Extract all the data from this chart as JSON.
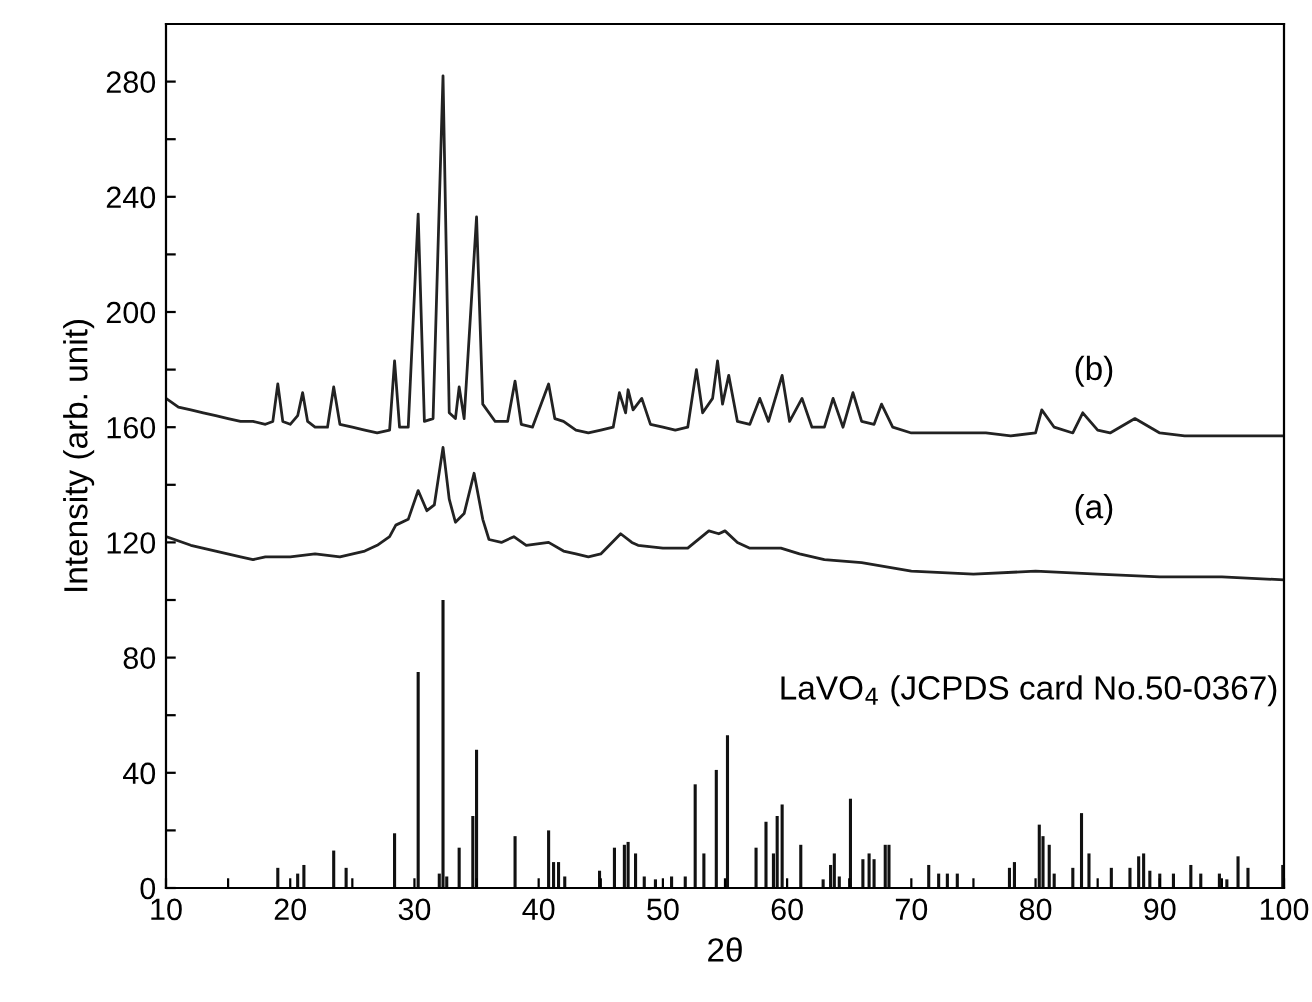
{
  "chart_data": {
    "type": "line",
    "xlabel": "2θ",
    "ylabel": "Intensity (arb. unit)",
    "xlim": [
      10,
      100
    ],
    "ylim": [
      0,
      300
    ],
    "xticks": [
      10,
      {
        "value": 15,
        "label": null
      },
      20,
      {
        "value": 25,
        "label": null
      },
      30,
      {
        "value": 35,
        "label": null
      },
      40,
      {
        "value": 45,
        "label": null
      },
      50,
      {
        "value": 55,
        "label": null
      },
      60,
      {
        "value": 65,
        "label": null
      },
      70,
      {
        "value": 75,
        "label": null
      },
      80,
      {
        "value": 85,
        "label": null
      },
      90,
      {
        "value": 95,
        "label": null
      },
      100
    ],
    "yticks": [
      0,
      {
        "value": 20,
        "label": null
      },
      40,
      {
        "value": 60,
        "label": null
      },
      80,
      {
        "value": 100,
        "label": null
      },
      120,
      {
        "value": 140,
        "label": null
      },
      160,
      {
        "value": 180,
        "label": null
      },
      200,
      {
        "value": 220,
        "label": null
      },
      240,
      {
        "value": 260,
        "label": null
      },
      280
    ],
    "grid": false,
    "legend": false,
    "series": [
      {
        "color": "#222222",
        "x": [
          10,
          11,
          12,
          13,
          14,
          15,
          16,
          17,
          18,
          18.6,
          19,
          19.4,
          20,
          20.6,
          21,
          21.4,
          22,
          23,
          23.5,
          24,
          25,
          26,
          27,
          28,
          28.4,
          28.8,
          29.5,
          30.3,
          30.8,
          31.5,
          32.3,
          32.8,
          33.3,
          33.6,
          34,
          35,
          35.5,
          36.5,
          37.5,
          38.1,
          38.6,
          39.5,
          40.8,
          41.3,
          42,
          43,
          44,
          45,
          46,
          46.5,
          47,
          47.2,
          47.6,
          48.3,
          49,
          50,
          51,
          52,
          52.7,
          53.2,
          54,
          54.4,
          54.8,
          55.3,
          56,
          57,
          57.8,
          58.5,
          59.6,
          60.2,
          61.2,
          62,
          63,
          63.7,
          64.5,
          65.3,
          66,
          67,
          67.6,
          68.5,
          70,
          72,
          74,
          76,
          78,
          80,
          80.5,
          81.5,
          83,
          83.8,
          85,
          86,
          88,
          90,
          92,
          94,
          96,
          98,
          100
        ],
        "values": [
          170,
          167,
          166,
          165,
          164,
          163,
          162,
          162,
          161,
          162,
          175,
          162,
          161,
          164,
          172,
          162,
          160,
          160,
          174,
          161,
          160,
          159,
          158,
          159,
          183,
          160,
          160,
          234,
          162,
          163,
          282,
          165,
          163,
          174,
          163,
          233,
          168,
          162,
          162,
          176,
          161,
          160,
          175,
          163,
          162,
          159,
          158,
          159,
          160,
          172,
          165,
          173,
          166,
          170,
          161,
          160,
          159,
          160,
          180,
          165,
          170,
          183,
          168,
          178,
          162,
          161,
          170,
          162,
          178,
          162,
          170,
          160,
          160,
          170,
          160,
          172,
          162,
          161,
          168,
          160,
          158,
          158,
          158,
          158,
          157,
          158,
          166,
          160,
          158,
          165,
          159,
          158,
          163,
          158,
          157,
          157,
          157,
          157,
          157
        ]
      },
      {
        "color": "#222222",
        "x": [
          10,
          12,
          14,
          16,
          17,
          18,
          20,
          22,
          24,
          26,
          27,
          28,
          28.5,
          29.5,
          30.3,
          31,
          31.6,
          32.3,
          32.8,
          33.3,
          34,
          34.8,
          35.5,
          36,
          37,
          38,
          39,
          40.8,
          42,
          43,
          44,
          45,
          46.6,
          47.5,
          48,
          50,
          52,
          53.7,
          54.5,
          55,
          56,
          57,
          59.5,
          61,
          63,
          66,
          70,
          75,
          80,
          85,
          90,
          95,
          100
        ],
        "values": [
          122,
          119,
          117,
          115,
          114,
          115,
          115,
          116,
          115,
          117,
          119,
          122,
          126,
          128,
          138,
          131,
          133,
          153,
          135,
          127,
          130,
          144,
          128,
          121,
          120,
          122,
          119,
          120,
          117,
          116,
          115,
          116,
          123,
          120,
          119,
          118,
          118,
          124,
          123,
          124,
          120,
          118,
          118,
          116,
          114,
          113,
          110,
          109,
          110,
          109,
          108,
          108,
          107
        ]
      },
      {
        "type": "bar",
        "color": "#111111",
        "x": [
          19.0,
          20.6,
          21.1,
          23.5,
          24.5,
          28.4,
          30.3,
          32.0,
          32.3,
          32.6,
          33.6,
          34.7,
          35.0,
          38.1,
          40.8,
          41.2,
          41.6,
          42.1,
          44.9,
          46.1,
          46.9,
          47.2,
          47.8,
          48.5,
          49.4,
          50.7,
          51.8,
          52.6,
          53.3,
          54.3,
          55.2,
          57.5,
          58.3,
          58.9,
          59.2,
          59.6,
          61.1,
          62.9,
          63.5,
          63.8,
          64.2,
          65.1,
          66.1,
          66.6,
          67.0,
          67.9,
          68.2,
          71.4,
          72.2,
          72.9,
          73.7,
          77.9,
          78.3,
          80.3,
          80.6,
          81.1,
          81.5,
          83.0,
          83.7,
          84.3,
          86.1,
          87.6,
          88.3,
          88.7,
          89.2,
          90.0,
          91.1,
          92.5,
          93.3,
          94.8,
          95.4,
          96.3,
          97.1,
          99.9
        ],
        "values": [
          7,
          5,
          8,
          13,
          7,
          19,
          75,
          5,
          100,
          4,
          14,
          25,
          48,
          18,
          20,
          9,
          9,
          4,
          6,
          14,
          15,
          16,
          12,
          4,
          3,
          4,
          4,
          36,
          12,
          41,
          53,
          14,
          23,
          12,
          25,
          29,
          15,
          3,
          8,
          12,
          4,
          31,
          10,
          12,
          10,
          15,
          15,
          8,
          5,
          5,
          5,
          7,
          9,
          22,
          18,
          15,
          5,
          7,
          26,
          12,
          7,
          7,
          11,
          12,
          6,
          5,
          5,
          8,
          5,
          5,
          3,
          11,
          7,
          8
        ]
      }
    ],
    "annotations": [
      "(b)",
      "(a)",
      "LaVO$_{4}$ (JCPDS card No.50-0367)"
    ]
  }
}
